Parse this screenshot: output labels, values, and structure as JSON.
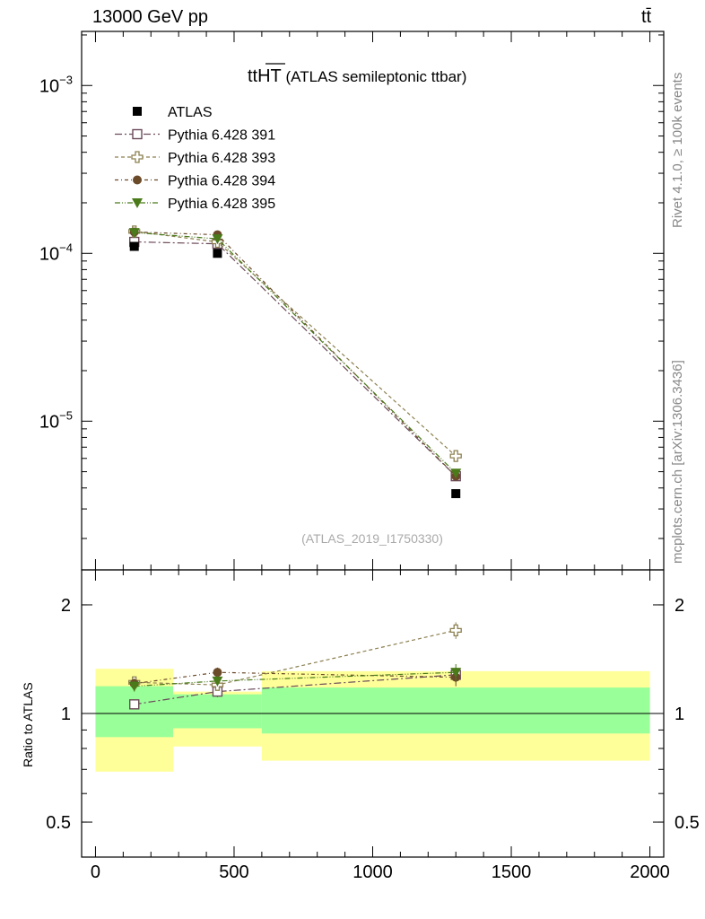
{
  "header": {
    "left": "13000 GeV pp",
    "right": "tt̄"
  },
  "side_labels": {
    "rivet": "Rivet 4.1.0, ≥ 100k events",
    "mcplots": "mcplots.cern.ch [arXiv:1306.3436]"
  },
  "colors": {
    "atlas": "#000000",
    "s391": "#6b4a5a",
    "s393": "#8c8050",
    "s394": "#6b4a2a",
    "s395": "#4a7a1a",
    "band_inner": "#99ff99",
    "band_outer": "#ffff99"
  },
  "chart_data": {
    "type": "line",
    "title_main": "ttHT",
    "title_sub": "(ATLAS semileptonic ttbar)",
    "analysis_id": "(ATLAS_2019_I1750330)",
    "ylabel_ratio": "Ratio to ATLAS",
    "x": [
      140,
      440,
      1300
    ],
    "bins": [
      [
        0,
        280
      ],
      [
        280,
        600
      ],
      [
        600,
        2000
      ]
    ],
    "xlim": [
      -50,
      2050
    ],
    "ylim_main": [
      1.3e-06,
      0.0021
    ],
    "ylim_ratio": [
      0.4,
      2.5
    ],
    "y_ticks_main": [
      {
        "label": "10",
        "exp": "−3",
        "value": 0.001
      },
      {
        "label": "10",
        "exp": "−4",
        "value": 0.0001
      },
      {
        "label": "10",
        "exp": "−5",
        "value": 1e-05
      }
    ],
    "y_ticks_ratio": [
      {
        "label": "0.5",
        "value": 0.5
      },
      {
        "label": "1",
        "value": 1
      },
      {
        "label": "2",
        "value": 2
      }
    ],
    "x_ticks": [
      {
        "label": "0",
        "value": 0
      },
      {
        "label": "500",
        "value": 500
      },
      {
        "label": "1000",
        "value": 1000
      },
      {
        "label": "1500",
        "value": 1500
      },
      {
        "label": "2000",
        "value": 2000
      }
    ],
    "data": {
      "name": "ATLAS",
      "values": [
        0.00011,
        0.0001,
        3.7e-06
      ]
    },
    "band_inner": [
      [
        0.86,
        1.19
      ],
      [
        0.91,
        1.13
      ],
      [
        0.88,
        1.18
      ]
    ],
    "band_outer": [
      [
        0.69,
        1.33
      ],
      [
        0.81,
        1.15
      ],
      [
        0.74,
        1.31
      ]
    ],
    "series": [
      {
        "name": "Pythia 6.428 391",
        "marker": "open-square",
        "dash": "8,3,2,3",
        "values": [
          0.000117,
          0.000114,
          4.7e-06
        ],
        "ratio": [
          1.06,
          1.15,
          1.28
        ],
        "ratio_err": [
          0.03,
          0.04,
          0.06
        ]
      },
      {
        "name": "Pythia 6.428 393",
        "marker": "open-cross",
        "dash": "4,3",
        "values": [
          0.000135,
          0.000117,
          6.2e-06
        ],
        "ratio": [
          1.22,
          1.2,
          1.7
        ],
        "ratio_err": [
          0.04,
          0.04,
          0.09
        ]
      },
      {
        "name": "Pythia 6.428 394",
        "marker": "filled-circle",
        "dash": "4,3,1,3",
        "values": [
          0.000134,
          0.000129,
          4.7e-06
        ],
        "ratio": [
          1.21,
          1.3,
          1.26
        ],
        "ratio_err": [
          0.04,
          0.04,
          0.07
        ]
      },
      {
        "name": "Pythia 6.428 395",
        "marker": "filled-triangle",
        "dash": "6,2,1,2,1,2",
        "values": [
          0.000133,
          0.000122,
          4.9e-06
        ],
        "ratio": [
          1.19,
          1.23,
          1.3
        ],
        "ratio_err": [
          0.04,
          0.04,
          0.07
        ]
      }
    ]
  }
}
